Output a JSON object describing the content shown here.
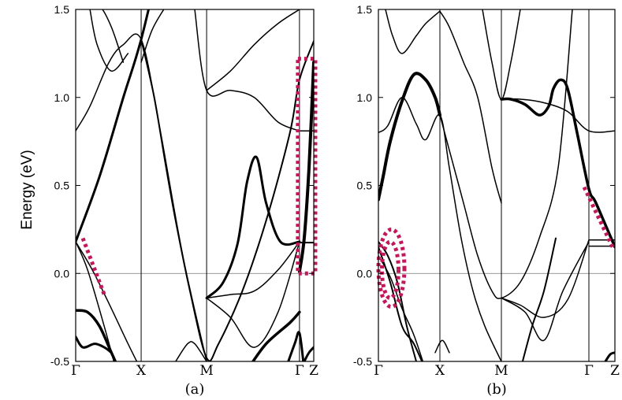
{
  "chart_data": {
    "type": "line",
    "ylabel": "Energy (eV)",
    "ylim": [
      -0.5,
      1.5
    ],
    "yticks": [
      -0.5,
      0.0,
      0.5,
      1.0,
      1.5
    ],
    "ytick_labels": [
      "-0.5",
      "0.0",
      "0.5",
      "1.0",
      "1.5"
    ],
    "grid": false,
    "fermi_level": 0.0,
    "accent_color": "#c0185a",
    "panels": [
      {
        "label": "(a)",
        "kpoints": [
          {
            "label": "Γ",
            "pos": 0.0
          },
          {
            "label": "X",
            "pos": 0.275
          },
          {
            "label": "M",
            "pos": 0.55
          },
          {
            "label": "Γ",
            "pos": 0.94
          },
          {
            "label": "Z",
            "pos": 1.0
          }
        ],
        "bands": [
          {
            "x": [
              0,
              0.1,
              0.2,
              0.275,
              0.4,
              0.55
            ],
            "y": [
              0.18,
              0.55,
              1.0,
              1.33,
              2.0,
              2.5
            ],
            "weight": 3
          },
          {
            "x": [
              0,
              0.07,
              0.15,
              0.22,
              0.275
            ],
            "y": [
              0.18,
              0.02,
              -0.2,
              -0.4,
              -0.55
            ],
            "weight": 1.5
          },
          {
            "x": [
              0,
              0.05,
              0.12,
              0.17
            ],
            "y": [
              0.18,
              0.02,
              -0.3,
              -0.55
            ],
            "weight": 1.5
          },
          {
            "x": [
              0,
              0.05,
              0.1,
              0.15,
              0.2
            ],
            "y": [
              -0.21,
              -0.22,
              -0.3,
              -0.45,
              -0.6
            ],
            "weight": 3.5
          },
          {
            "x": [
              0,
              0.03,
              0.08,
              0.12,
              0.15
            ],
            "y": [
              -0.36,
              -0.42,
              -0.4,
              -0.42,
              -0.45
            ],
            "weight": 3
          },
          {
            "x": [
              0,
              0.06,
              0.14,
              0.2,
              0.275,
              0.35,
              0.45,
              0.55
            ],
            "y": [
              0.81,
              0.95,
              1.2,
              1.3,
              1.33,
              0.85,
              0.1,
              -0.5
            ],
            "weight": 1.5
          },
          {
            "x": [
              0.06,
              0.09,
              0.15,
              0.22
            ],
            "y": [
              1.5,
              1.3,
              1.15,
              1.25
            ],
            "weight": 1.5
          },
          {
            "x": [
              0.06,
              0.1,
              0.15,
              0.2
            ],
            "y": [
              1.5,
              1.52,
              1.4,
              1.2
            ],
            "weight": 1.5
          },
          {
            "x": [
              0.275,
              0.33,
              0.38,
              0.42,
              0.48,
              0.55,
              0.6,
              0.7,
              0.8,
              0.9,
              0.94,
              1.0
            ],
            "y": [
              1.33,
              1.0,
              0.6,
              0.3,
              -0.1,
              -0.48,
              -0.4,
              -0.1,
              0.3,
              0.8,
              1.1,
              1.32
            ],
            "weight": 2
          },
          {
            "x": [
              0.275,
              0.32,
              0.37,
              0.42
            ],
            "y": [
              1.2,
              1.38,
              1.5,
              1.6
            ],
            "weight": 1.5
          },
          {
            "x": [
              0.5,
              0.55,
              0.65,
              0.75,
              0.85,
              0.94
            ],
            "y": [
              1.5,
              1.04,
              1.04,
              1.0,
              0.86,
              0.81
            ],
            "weight": 1.5
          },
          {
            "x": [
              0.55,
              0.65,
              0.75,
              0.85,
              0.94
            ],
            "y": [
              1.04,
              1.15,
              1.3,
              1.42,
              1.5
            ],
            "weight": 1.5
          },
          {
            "x": [
              0.94,
              1.0
            ],
            "y": [
              0.81,
              0.81
            ],
            "weight": 1.5
          },
          {
            "x": [
              0.55,
              0.62,
              0.68,
              0.72,
              0.76,
              0.8,
              0.86,
              0.94
            ],
            "y": [
              -0.14,
              -0.05,
              0.17,
              0.52,
              0.66,
              0.4,
              0.18,
              0.18
            ],
            "weight": 3
          },
          {
            "x": [
              0.55,
              0.65,
              0.75,
              0.85,
              0.94
            ],
            "y": [
              -0.14,
              -0.25,
              -0.42,
              -0.22,
              0.18
            ],
            "weight": 1.5
          },
          {
            "x": [
              0.55,
              0.65,
              0.75,
              0.85,
              0.94
            ],
            "y": [
              -0.14,
              -0.12,
              -0.1,
              0.02,
              0.18
            ],
            "weight": 1.5
          },
          {
            "x": [
              0.94,
              1.0
            ],
            "y": [
              0.175,
              0.175
            ],
            "weight": 2
          },
          {
            "x": [
              0.42,
              0.47,
              0.5,
              0.55
            ],
            "y": [
              -0.5,
              -0.4,
              -0.4,
              -0.5
            ],
            "weight": 1.5
          },
          {
            "x": [
              0.72,
              0.8,
              0.9,
              0.94
            ],
            "y": [
              -0.55,
              -0.4,
              -0.28,
              -0.22
            ],
            "weight": 3.5
          },
          {
            "x": [
              0.88,
              0.92,
              0.94,
              0.96
            ],
            "y": [
              -0.55,
              -0.4,
              -0.34,
              -0.55
            ],
            "weight": 3
          },
          {
            "x": [
              0.94,
              0.96,
              0.98,
              1.0
            ],
            "y": [
              -0.55,
              -0.5,
              -0.45,
              -0.42
            ],
            "weight": 3
          },
          {
            "x": [
              0.94,
              0.96,
              0.98,
              1.0
            ],
            "y": [
              0.01,
              0.2,
              0.6,
              1.2
            ],
            "weight": 4
          }
        ],
        "highlights": [
          {
            "kind": "stripe",
            "x0": 0.03,
            "y0": 0.2,
            "x1": 0.12,
            "y1": -0.12
          },
          {
            "kind": "box",
            "x0": 0.94,
            "x1": 1.0,
            "y0": 0.0,
            "y1": 1.22
          }
        ]
      },
      {
        "label": "(b)",
        "kpoints": [
          {
            "label": "Γ",
            "pos": 0.0
          },
          {
            "label": "X",
            "pos": 0.26
          },
          {
            "label": "M",
            "pos": 0.52
          },
          {
            "label": "Γ",
            "pos": 0.89
          },
          {
            "label": "Z",
            "pos": 1.0
          }
        ],
        "bands": [
          {
            "x": [
              0,
              0.02,
              0.05,
              0.1,
              0.15,
              0.2,
              0.24,
              0.26
            ],
            "y": [
              0.42,
              0.55,
              0.75,
              0.98,
              1.13,
              1.1,
              1.0,
              0.9
            ],
            "weight": 4
          },
          {
            "x": [
              0,
              0.04,
              0.1,
              0.16,
              0.2,
              0.26,
              0.3,
              0.35,
              0.4,
              0.45,
              0.52
            ],
            "y": [
              0.8,
              0.84,
              1.0,
              0.85,
              0.76,
              0.9,
              0.6,
              0.2,
              -0.1,
              -0.3,
              -0.5
            ],
            "weight": 1.5
          },
          {
            "x": [
              0.03,
              0.06,
              0.1,
              0.16,
              0.2,
              0.26
            ],
            "y": [
              1.5,
              1.35,
              1.25,
              1.35,
              1.42,
              1.49
            ],
            "weight": 1.5
          },
          {
            "x": [
              0.26,
              0.3,
              0.36,
              0.42,
              0.48,
              0.52
            ],
            "y": [
              1.49,
              1.4,
              1.2,
              1.0,
              0.6,
              0.4
            ],
            "weight": 1.5
          },
          {
            "x": [
              0.26,
              0.3,
              0.36,
              0.42,
              0.48,
              0.52,
              0.6,
              0.68,
              0.76,
              0.82
            ],
            "y": [
              0.9,
              0.7,
              0.4,
              0.1,
              -0.1,
              -0.14,
              -0.05,
              0.2,
              0.6,
              1.5
            ],
            "weight": 1.5
          },
          {
            "x": [
              0.52,
              0.56,
              0.62,
              0.68,
              0.72,
              0.74,
              0.77,
              0.8,
              0.84,
              0.89,
              0.92,
              1.0
            ],
            "y": [
              0.99,
              0.99,
              0.96,
              0.9,
              0.95,
              1.05,
              1.1,
              1.05,
              0.8,
              0.48,
              0.4,
              0.15
            ],
            "weight": 3.5
          },
          {
            "x": [
              0.52,
              0.6,
              0.7,
              0.8,
              0.89,
              1.0
            ],
            "y": [
              0.99,
              0.99,
              0.97,
              0.92,
              0.81,
              0.81
            ],
            "weight": 1.5
          },
          {
            "x": [
              0.44,
              0.48,
              0.52,
              0.56,
              0.6
            ],
            "y": [
              1.5,
              1.2,
              0.99,
              1.2,
              1.5
            ],
            "weight": 1.5
          },
          {
            "x": [
              0.52,
              0.6,
              0.7,
              0.8,
              0.89
            ],
            "y": [
              -0.14,
              -0.18,
              -0.25,
              -0.15,
              0.19
            ],
            "weight": 1.5
          },
          {
            "x": [
              0.52,
              0.62,
              0.7,
              0.78,
              0.89
            ],
            "y": [
              -0.14,
              -0.22,
              -0.38,
              -0.1,
              0.18
            ],
            "weight": 1.5
          },
          {
            "x": [
              0.89,
              1.0
            ],
            "y": [
              0.19,
              0.19
            ],
            "weight": 1.5
          },
          {
            "x": [
              0.89,
              1.0
            ],
            "y": [
              0.155,
              0.155
            ],
            "weight": 1.5
          },
          {
            "x": [
              0,
              0.04,
              0.08,
              0.12,
              0.16
            ],
            "y": [
              0.18,
              0.1,
              -0.05,
              -0.3,
              -0.5
            ],
            "weight": 2
          },
          {
            "x": [
              0,
              0.05,
              0.1,
              0.15,
              0.2
            ],
            "y": [
              0.15,
              -0.05,
              -0.3,
              -0.4,
              -0.55
            ],
            "weight": 2
          },
          {
            "x": [
              0,
              0.05,
              0.1,
              0.15,
              0.2
            ],
            "y": [
              0.1,
              -0.02,
              -0.2,
              -0.35,
              -0.55
            ],
            "weight": 1.5
          },
          {
            "x": [
              0.24,
              0.27,
              0.3
            ],
            "y": [
              -0.45,
              -0.38,
              -0.45
            ],
            "weight": 1.5
          },
          {
            "x": [
              0.6,
              0.65,
              0.7,
              0.75
            ],
            "y": [
              -0.55,
              -0.3,
              -0.1,
              0.2
            ],
            "weight": 2
          },
          {
            "x": [
              0.96,
              0.98,
              1.0
            ],
            "y": [
              -0.5,
              -0.46,
              -0.45
            ],
            "weight": 3
          }
        ],
        "highlights": [
          {
            "kind": "ellipse",
            "cx": 0.055,
            "cy": 0.03,
            "rx": 0.055,
            "ry": 0.22
          },
          {
            "kind": "ellipse",
            "cx": 0.05,
            "cy": 0.02,
            "rx": 0.035,
            "ry": 0.16
          },
          {
            "kind": "stripe",
            "x0": 0.87,
            "y0": 0.49,
            "x1": 0.99,
            "y1": 0.15
          }
        ]
      }
    ]
  }
}
